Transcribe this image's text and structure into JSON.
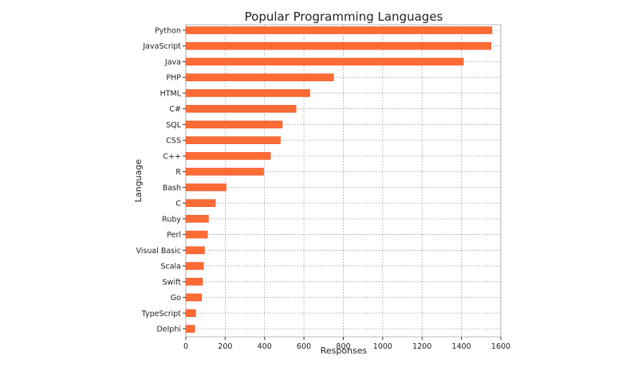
{
  "chart_data": {
    "type": "bar",
    "orientation": "horizontal",
    "title": "Popular Programming Languages",
    "xlabel": "Responses",
    "ylabel": "Language",
    "categories": [
      "Python",
      "JavaScript",
      "Java",
      "PHP",
      "HTML",
      "C#",
      "SQL",
      "CSS",
      "C++",
      "R",
      "Bash",
      "C",
      "Ruby",
      "Perl",
      "Visual Basic",
      "Scala",
      "Swift",
      "Go",
      "TypeScript",
      "Delphi"
    ],
    "values": [
      1555,
      1550,
      1410,
      750,
      630,
      560,
      490,
      480,
      430,
      395,
      205,
      150,
      115,
      110,
      95,
      90,
      85,
      80,
      50,
      45
    ],
    "xlim": [
      0,
      1600
    ],
    "xticks": [
      "0",
      "200",
      "400",
      "600",
      "800",
      "1000",
      "1200",
      "1400",
      "1600"
    ],
    "grid": true,
    "bar_color": "#ff6b35",
    "bar_stroke_color": "#e5582a",
    "grid_color": "#999999"
  }
}
